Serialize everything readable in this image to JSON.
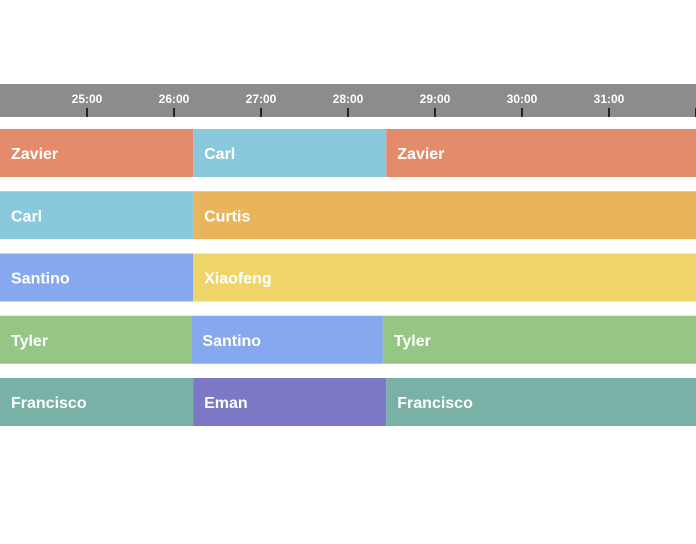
{
  "chart_data": {
    "type": "timeline",
    "x_unit": "minutes",
    "xlim": [
      24.0,
      32.0
    ],
    "ticks": [
      {
        "value": 25,
        "label": "25:00"
      },
      {
        "value": 26,
        "label": "26:00"
      },
      {
        "value": 27,
        "label": "27:00"
      },
      {
        "value": 28,
        "label": "28:00"
      },
      {
        "value": 29,
        "label": "29:00"
      },
      {
        "value": 30,
        "label": "30:00"
      },
      {
        "value": 31,
        "label": "31:00"
      },
      {
        "value": 32,
        "label": ""
      }
    ],
    "colors": {
      "axis_bg": "#8c8c8c",
      "tick": "#000000",
      "Zavier": "#e38b6b",
      "Carl": "#8ac9dd",
      "Curtis": "#e9b55c",
      "Santino": "#86a8ef",
      "Xiaofeng": "#efd568",
      "Tyler": "#95c685",
      "Francisco": "#7ab1a6",
      "Eman": "#7b79c6"
    },
    "rows": [
      {
        "segments": [
          {
            "name": "Zavier",
            "start": 24.0,
            "end": 26.22
          },
          {
            "name": "Carl",
            "start": 26.22,
            "end": 28.44
          },
          {
            "name": "Zavier",
            "start": 28.44,
            "end": 32.0
          }
        ]
      },
      {
        "segments": [
          {
            "name": "Carl",
            "start": 24.0,
            "end": 26.22
          },
          {
            "name": "Curtis",
            "start": 26.22,
            "end": 32.0
          }
        ]
      },
      {
        "segments": [
          {
            "name": "Santino",
            "start": 24.0,
            "end": 26.22
          },
          {
            "name": "Xiaofeng",
            "start": 26.22,
            "end": 32.0
          }
        ]
      },
      {
        "segments": [
          {
            "name": "Tyler",
            "start": 24.0,
            "end": 26.2
          },
          {
            "name": "Santino",
            "start": 26.2,
            "end": 28.4
          },
          {
            "name": "Tyler",
            "start": 28.4,
            "end": 32.0
          }
        ]
      },
      {
        "segments": [
          {
            "name": "Francisco",
            "start": 24.0,
            "end": 26.22
          },
          {
            "name": "Eman",
            "start": 26.22,
            "end": 28.44
          },
          {
            "name": "Francisco",
            "start": 28.44,
            "end": 32.0
          }
        ]
      }
    ]
  }
}
